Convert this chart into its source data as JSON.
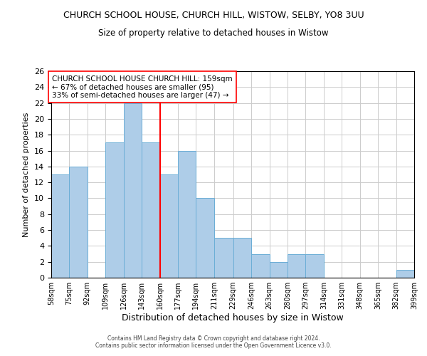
{
  "title": "CHURCH SCHOOL HOUSE, CHURCH HILL, WISTOW, SELBY, YO8 3UU",
  "subtitle": "Size of property relative to detached houses in Wistow",
  "xlabel": "Distribution of detached houses by size in Wistow",
  "ylabel": "Number of detached properties",
  "bar_edges": [
    58,
    75,
    92,
    109,
    126,
    143,
    160,
    177,
    194,
    211,
    229,
    246,
    263,
    280,
    297,
    314,
    331,
    348,
    365,
    382,
    399
  ],
  "bar_heights": [
    13,
    14,
    0,
    17,
    22,
    17,
    13,
    16,
    10,
    5,
    5,
    3,
    2,
    3,
    3,
    0,
    0,
    0,
    0,
    1
  ],
  "bar_color": "#aecde8",
  "bar_edge_color": "#6baed6",
  "reference_line_x": 160,
  "reference_line_color": "red",
  "ylim": [
    0,
    26
  ],
  "yticks": [
    0,
    2,
    4,
    6,
    8,
    10,
    12,
    14,
    16,
    18,
    20,
    22,
    24,
    26
  ],
  "tick_labels": [
    "58sqm",
    "75sqm",
    "92sqm",
    "109sqm",
    "126sqm",
    "143sqm",
    "160sqm",
    "177sqm",
    "194sqm",
    "211sqm",
    "229sqm",
    "246sqm",
    "263sqm",
    "280sqm",
    "297sqm",
    "314sqm",
    "331sqm",
    "348sqm",
    "365sqm",
    "382sqm",
    "399sqm"
  ],
  "annotation_title": "CHURCH SCHOOL HOUSE CHURCH HILL: 159sqm",
  "annotation_line1": "← 67% of detached houses are smaller (95)",
  "annotation_line2": "33% of semi-detached houses are larger (47) →",
  "footer_line1": "Contains HM Land Registry data © Crown copyright and database right 2024.",
  "footer_line2": "Contains public sector information licensed under the Open Government Licence v3.0.",
  "bg_color": "#ffffff",
  "grid_color": "#cccccc"
}
